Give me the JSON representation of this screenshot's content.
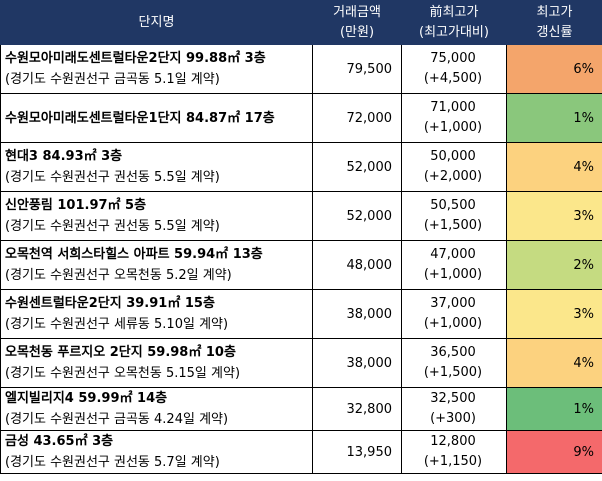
{
  "header": {
    "name": "단지명",
    "price": [
      "거래금액",
      "(만원)"
    ],
    "prev": [
      "前최고가",
      "(최고가대비)"
    ],
    "rate": [
      "최고가",
      "갱신률"
    ]
  },
  "rows": [
    {
      "line1": "수원모아미래도센트럴타운2단지 99.88㎡ 3층",
      "line2": "(경기도 수원권선구 금곡동 5.1일 계약)",
      "price": "79,500",
      "prev": "75,000",
      "diff": "(+4,500)",
      "rate": "6%",
      "color": "#F4A56B"
    },
    {
      "line1": "수원모아미래도센트럴타운1단지 84.87㎡ 17층",
      "line2": "",
      "price": "72,000",
      "prev": "71,000",
      "diff": "(+1,000)",
      "rate": "1%",
      "color": "#8AC77C"
    },
    {
      "line1": "현대3 84.93㎡ 3층",
      "line2": "(경기도 수원권선구 권선동 5.5일 계약)",
      "price": "52,000",
      "prev": "50,000",
      "diff": "(+2,000)",
      "rate": "4%",
      "color": "#FCD27F"
    },
    {
      "line1": "신안풍림 101.97㎡ 5층",
      "line2": "(경기도 수원권선구 권선동 5.5일 계약)",
      "price": "52,000",
      "prev": "50,500",
      "diff": "(+1,500)",
      "rate": "3%",
      "color": "#FBE78B"
    },
    {
      "line1": "오목천역 서희스타힐스 아파트 59.94㎡ 13층",
      "line2": "(경기도 수원권선구 오목천동 5.2일 계약)",
      "price": "48,000",
      "prev": "47,000",
      "diff": "(+1,000)",
      "rate": "2%",
      "color": "#C5DB81"
    },
    {
      "line1": "수원센트럴타운2단지 39.91㎡ 15층",
      "line2": "(경기도 수원권선구 세류동 5.10일 계약)",
      "price": "38,000",
      "prev": "37,000",
      "diff": "(+1,000)",
      "rate": "3%",
      "color": "#FBE78B"
    },
    {
      "line1": "오목천동 푸르지오 2단지 59.98㎡ 10층",
      "line2": "(경기도 수원권선구 오목천동 5.15일 계약)",
      "price": "38,000",
      "prev": "36,500",
      "diff": "(+1,500)",
      "rate": "4%",
      "color": "#FCD27F"
    },
    {
      "line1": "엘지빌리지4 59.99㎡ 14층",
      "line2": "(경기도 수원권선구 금곡동 4.24일 계약)",
      "price": "32,800",
      "prev": "32,500",
      "diff": "(+300)",
      "rate": "1%",
      "color": "#6CBE7A"
    },
    {
      "line1": "금성 43.65㎡ 3층",
      "line2": "(경기도 수원권선구 권선동 5.7일 계약)",
      "price": "13,950",
      "prev": "12,800",
      "diff": "(+1,150)",
      "rate": "9%",
      "color": "#F4696B"
    }
  ]
}
